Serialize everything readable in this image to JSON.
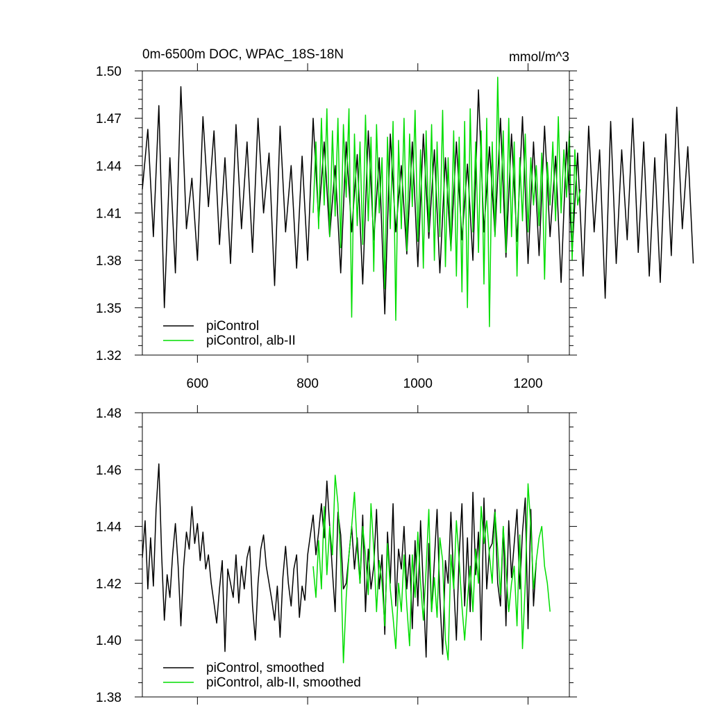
{
  "chart_data": [
    {
      "type": "line",
      "title": "0m-6500m DOC, WPAC_18S-18N",
      "units": "mmol/m^3",
      "xlim": [
        500,
        1275
      ],
      "ylim": [
        1.32,
        1.5
      ],
      "xticks": [
        600,
        800,
        1000,
        1200
      ],
      "xtick_labels": [
        "600",
        "800",
        "1000",
        "1200"
      ],
      "yticks": [
        1.32,
        1.35,
        1.38,
        1.41,
        1.44,
        1.47,
        1.5
      ],
      "ytick_labels": [
        "1.32",
        "1.35",
        "1.38",
        "1.41",
        "1.44",
        "1.47",
        "1.50"
      ],
      "legend_position": "bottom-left",
      "grid": false,
      "series": [
        {
          "name": "piControl",
          "color": "#000000",
          "x_start": 500,
          "x_step": 10,
          "values": [
            1.425,
            1.463,
            1.395,
            1.478,
            1.35,
            1.445,
            1.372,
            1.49,
            1.4,
            1.432,
            1.38,
            1.471,
            1.414,
            1.462,
            1.39,
            1.445,
            1.378,
            1.466,
            1.4,
            1.455,
            1.385,
            1.47,
            1.41,
            1.448,
            1.364,
            1.465,
            1.398,
            1.44,
            1.375,
            1.446,
            1.38,
            1.47,
            1.405,
            1.455,
            1.395,
            1.44,
            1.372,
            1.455,
            1.398,
            1.447,
            1.365,
            1.462,
            1.393,
            1.445,
            1.346,
            1.46,
            1.398,
            1.44,
            1.384,
            1.455,
            1.376,
            1.46,
            1.394,
            1.45,
            1.372,
            1.445,
            1.387,
            1.455,
            1.393,
            1.441,
            1.38,
            1.488,
            1.398,
            1.452,
            1.396,
            1.47,
            1.382,
            1.46,
            1.392,
            1.471,
            1.378,
            1.455,
            1.383,
            1.465,
            1.395,
            1.446,
            1.366,
            1.455,
            1.385,
            1.448,
            1.37,
            1.465,
            1.398,
            1.45,
            1.356,
            1.468,
            1.378,
            1.45,
            1.393,
            1.47,
            1.385,
            1.455,
            1.37,
            1.445,
            1.366,
            1.46,
            1.383,
            1.477,
            1.4,
            1.452,
            1.378
          ],
          "labeled": true
        },
        {
          "name": "piControl, alb-II",
          "color": "#00dd00",
          "x_start": 810,
          "x_step": 5,
          "values": [
            1.41,
            1.455,
            1.4,
            1.47,
            1.415,
            1.476,
            1.395,
            1.462,
            1.408,
            1.47,
            1.388,
            1.466,
            1.42,
            1.476,
            1.344,
            1.46,
            1.402,
            1.455,
            1.39,
            1.472,
            1.405,
            1.458,
            1.373,
            1.466,
            1.41,
            1.445,
            1.362,
            1.458,
            1.4,
            1.468,
            1.342,
            1.456,
            1.4,
            1.47,
            1.386,
            1.46,
            1.414,
            1.475,
            1.392,
            1.45,
            1.375,
            1.462,
            1.398,
            1.466,
            1.38,
            1.455,
            1.395,
            1.475,
            1.376,
            1.445,
            1.386,
            1.462,
            1.37,
            1.458,
            1.36,
            1.468,
            1.35,
            1.476,
            1.398,
            1.455,
            1.385,
            1.462,
            1.365,
            1.47,
            1.338,
            1.455,
            1.395,
            1.496,
            1.41,
            1.462,
            1.385,
            1.47,
            1.395,
            1.455,
            1.37,
            1.445,
            1.405,
            1.46,
            1.398,
            1.445,
            1.415,
            1.44,
            1.402,
            1.448,
            1.368,
            1.442,
            1.415,
            1.455,
            1.405,
            1.471,
            1.41,
            1.45,
            1.42,
            1.462,
            1.38,
            1.45,
            1.415,
            1.425
          ],
          "labeled": true
        }
      ]
    },
    {
      "type": "line",
      "title": "",
      "xlim": [
        500,
        1275
      ],
      "ylim": [
        1.38,
        1.48
      ],
      "yticks": [
        1.38,
        1.4,
        1.42,
        1.44,
        1.46,
        1.48
      ],
      "ytick_labels": [
        "1.38",
        "1.40",
        "1.42",
        "1.44",
        "1.46",
        "1.48"
      ],
      "xticks": [
        600,
        800,
        1000,
        1200
      ],
      "xtick_labels": [
        "",
        "",
        "",
        ""
      ],
      "legend_position": "bottom-left",
      "grid": false,
      "series": [
        {
          "name": "piControl, smoothed",
          "color": "#000000",
          "x_start": 500,
          "x_step": 5,
          "values": [
            1.429,
            1.442,
            1.418,
            1.436,
            1.419,
            1.446,
            1.462,
            1.43,
            1.407,
            1.423,
            1.415,
            1.43,
            1.441,
            1.426,
            1.405,
            1.426,
            1.438,
            1.432,
            1.447,
            1.434,
            1.441,
            1.428,
            1.438,
            1.425,
            1.43,
            1.42,
            1.413,
            1.406,
            1.418,
            1.428,
            1.396,
            1.425,
            1.42,
            1.415,
            1.43,
            1.413,
            1.426,
            1.418,
            1.429,
            1.433,
            1.412,
            1.4,
            1.42,
            1.432,
            1.437,
            1.426,
            1.42,
            1.414,
            1.407,
            1.419,
            1.401,
            1.422,
            1.433,
            1.42,
            1.412,
            1.425,
            1.43,
            1.408,
            1.419,
            1.414,
            1.43,
            1.437,
            1.444,
            1.43,
            1.438,
            1.448,
            1.436,
            1.456,
            1.44,
            1.424,
            1.41,
            1.445,
            1.437,
            1.418,
            1.42,
            1.43,
            1.44,
            1.425,
            1.436,
            1.42,
            1.444,
            1.41,
            1.432,
            1.418,
            1.426,
            1.446,
            1.418,
            1.43,
            1.402,
            1.438,
            1.42,
            1.448,
            1.412,
            1.432,
            1.425,
            1.44,
            1.418,
            1.43,
            1.404,
            1.435,
            1.412,
            1.442,
            1.418,
            1.394,
            1.434,
            1.41,
            1.428,
            1.446,
            1.415,
            1.395,
            1.428,
            1.42,
            1.445,
            1.42,
            1.4,
            1.43,
            1.448,
            1.412,
            1.436,
            1.41,
            1.452,
            1.423,
            1.438,
            1.4,
            1.45,
            1.418,
            1.432,
            1.434,
            1.446,
            1.42,
            1.412,
            1.44,
            1.405,
            1.442,
            1.422,
            1.434,
            1.446,
            1.418,
            1.438,
            1.45,
            1.404,
            1.446,
            1.412,
            1.428
          ],
          "labeled": true
        },
        {
          "name": "piControl, alb-II, smoothed",
          "color": "#00dd00",
          "x_start": 810,
          "x_step": 5,
          "values": [
            1.426,
            1.415,
            1.435,
            1.418,
            1.447,
            1.423,
            1.44,
            1.43,
            1.458,
            1.448,
            1.428,
            1.392,
            1.415,
            1.43,
            1.44,
            1.452,
            1.432,
            1.42,
            1.44,
            1.43,
            1.416,
            1.448,
            1.432,
            1.41,
            1.428,
            1.42,
            1.405,
            1.434,
            1.418,
            1.408,
            1.397,
            1.42,
            1.41,
            1.43,
            1.412,
            1.398,
            1.43,
            1.415,
            1.438,
            1.42,
            1.407,
            1.425,
            1.446,
            1.41,
            1.422,
            1.408,
            1.436,
            1.428,
            1.4,
            1.393,
            1.43,
            1.418,
            1.442,
            1.428,
            1.412,
            1.4,
            1.414,
            1.426,
            1.41,
            1.432,
            1.42,
            1.447,
            1.434,
            1.442,
            1.43,
            1.42,
            1.445,
            1.432,
            1.416,
            1.44,
            1.425,
            1.41,
            1.42,
            1.426,
            1.405,
            1.437,
            1.397,
            1.42,
            1.455,
            1.44,
            1.418,
            1.428,
            1.436,
            1.44,
            1.426,
            1.42,
            1.41
          ],
          "labeled": true
        }
      ]
    }
  ]
}
